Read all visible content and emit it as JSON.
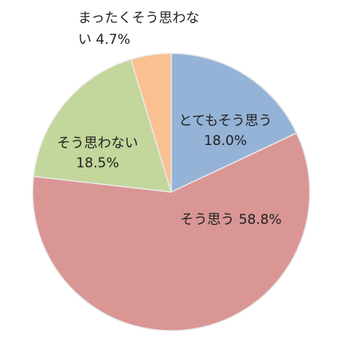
{
  "chart_data": {
    "type": "pie",
    "categories": [
      "とてもそう思う",
      "そう思う",
      "そう思わない",
      "まったくそう思わない"
    ],
    "values": [
      18.0,
      58.8,
      18.5,
      4.7
    ],
    "value_labels": [
      "18.0%",
      "58.8%",
      "18.5%",
      "4.7%"
    ],
    "colors": [
      "#95b3d7",
      "#d99694",
      "#c3d69b",
      "#fac090"
    ]
  }
}
